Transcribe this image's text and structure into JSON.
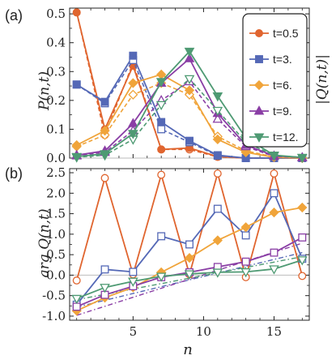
{
  "figure": {
    "panel_a": {
      "label": "(a)"
    },
    "panel_b": {
      "label": "(b)"
    },
    "xlabel_text": "n",
    "ylabel_a_text": "P(n,t)",
    "ylabel_a_right_text": "|Q(n,t)|",
    "ylabel_b_text": "arg Q(n,t)"
  },
  "colors": {
    "t05": "#e0652f",
    "t3": "#5468b6",
    "t6": "#f0a43a",
    "t9": "#8a3ea5",
    "t12": "#4e9a73",
    "axis": "#222222",
    "zero_line": "#bbbbbb"
  },
  "chart_data": [
    {
      "type": "line",
      "panel": "(a)",
      "xlim": [
        0.5,
        17.5
      ],
      "ylim": [
        0,
        0.52
      ],
      "xticks": [
        5,
        10,
        15
      ],
      "yticks": [
        0.0,
        0.1,
        0.2,
        0.3,
        0.4,
        0.5
      ],
      "ytick_labels": [
        "0.0",
        "0.1",
        "0.2",
        "0.3",
        "0.4",
        "0.5"
      ],
      "xlabel": "",
      "ylabel": "P(n,t)",
      "ylabel_right": "|Q(n,t)|",
      "legend": {
        "placement": "top-right",
        "entries": [
          "t=0.5",
          "t=3.",
          "t=6.",
          "t=9.",
          "t=12."
        ]
      },
      "x": [
        1,
        3,
        5,
        7,
        9,
        11,
        13,
        15,
        17
      ],
      "series": [
        {
          "name": "t=0.5",
          "color_key": "t05",
          "marker": "circle",
          "P": [
            0.505,
            0.1,
            0.32,
            0.03,
            0.035,
            0.005,
            0.0,
            0.0,
            0.0
          ],
          "absQ": [
            0.505,
            0.08,
            0.33,
            0.03,
            0.03,
            0.004,
            0.0,
            0.0,
            0.0
          ]
        },
        {
          "name": "t=3.",
          "color_key": "t3",
          "marker": "square",
          "P": [
            0.255,
            0.195,
            0.355,
            0.125,
            0.06,
            0.01,
            0.0,
            0.0,
            0.0
          ],
          "absQ": [
            0.255,
            0.19,
            0.34,
            0.1,
            0.055,
            0.008,
            0.0,
            0.0,
            0.0
          ]
        },
        {
          "name": "t=6.",
          "color_key": "t6",
          "marker": "diamond",
          "P": [
            0.045,
            0.095,
            0.26,
            0.29,
            0.235,
            0.065,
            0.02,
            0.003,
            0.0
          ],
          "absQ": [
            0.04,
            0.08,
            0.22,
            0.26,
            0.22,
            0.075,
            0.025,
            0.004,
            0.0
          ]
        },
        {
          "name": "t=9.",
          "color_key": "t9",
          "marker": "triangle-up",
          "P": [
            0.01,
            0.025,
            0.12,
            0.26,
            0.345,
            0.155,
            0.045,
            0.008,
            0.002
          ],
          "absQ": [
            0.008,
            0.02,
            0.095,
            0.2,
            0.265,
            0.135,
            0.04,
            0.006,
            0.002
          ]
        },
        {
          "name": "t=12.",
          "color_key": "t12",
          "marker": "triangle-down",
          "P": [
            0.005,
            0.015,
            0.085,
            0.265,
            0.37,
            0.215,
            0.07,
            0.01,
            0.002
          ],
          "absQ": [
            0.003,
            0.01,
            0.065,
            0.185,
            0.275,
            0.165,
            0.055,
            0.009,
            0.002
          ]
        }
      ]
    },
    {
      "type": "line",
      "panel": "(b)",
      "xlim": [
        0.5,
        17.5
      ],
      "ylim": [
        -1.1,
        2.6
      ],
      "xticks": [
        5,
        10,
        15
      ],
      "yticks": [
        -1.0,
        -0.5,
        0.0,
        0.5,
        1.0,
        1.5,
        2.0,
        2.5
      ],
      "ytick_labels": [
        "-1.0",
        "-0.5",
        "0.0",
        "0.5",
        "1.0",
        "1.5",
        "2.0",
        "2.5"
      ],
      "xlabel": "n",
      "ylabel": "arg Q(n,t)",
      "x": [
        1,
        3,
        5,
        7,
        9,
        11,
        13,
        15,
        17
      ],
      "series": [
        {
          "name": "t=0.5",
          "color_key": "t05",
          "marker": "circle",
          "arg": [
            -0.13,
            2.37,
            0.02,
            2.45,
            0.02,
            2.48,
            -0.05,
            2.48,
            -0.02
          ]
        },
        {
          "name": "t=3.",
          "color_key": "t3",
          "marker": "square",
          "arg": [
            -0.72,
            0.14,
            0.08,
            0.95,
            0.75,
            1.62,
            0.97,
            2.0,
            0.4
          ]
        },
        {
          "name": "t=6.",
          "color_key": "t6",
          "marker": "diamond",
          "arg": [
            -0.87,
            -0.55,
            -0.3,
            0.07,
            0.42,
            0.85,
            1.17,
            1.53,
            1.65
          ]
        },
        {
          "name": "t=9.",
          "color_key": "t9",
          "marker": "square-open",
          "arg": [
            -0.77,
            -0.48,
            -0.27,
            -0.05,
            0.07,
            0.2,
            0.33,
            0.55,
            0.92
          ]
        },
        {
          "name": "t=12.",
          "color_key": "t12",
          "marker": "triangle-down",
          "arg": [
            -0.57,
            -0.3,
            -0.15,
            -0.03,
            0.03,
            0.07,
            0.08,
            0.15,
            0.37
          ]
        }
      ],
      "dash_dot_reference_lines": [
        {
          "color_key": "t3",
          "x": [
            1,
            17
          ],
          "y": [
            -0.78,
            0.55
          ]
        },
        {
          "color_key": "t9",
          "x": [
            1,
            17
          ],
          "y": [
            -0.98,
            0.78
          ]
        },
        {
          "color_key": "t12",
          "x": [
            1,
            17
          ],
          "y": [
            -0.6,
            0.45
          ]
        }
      ]
    }
  ]
}
